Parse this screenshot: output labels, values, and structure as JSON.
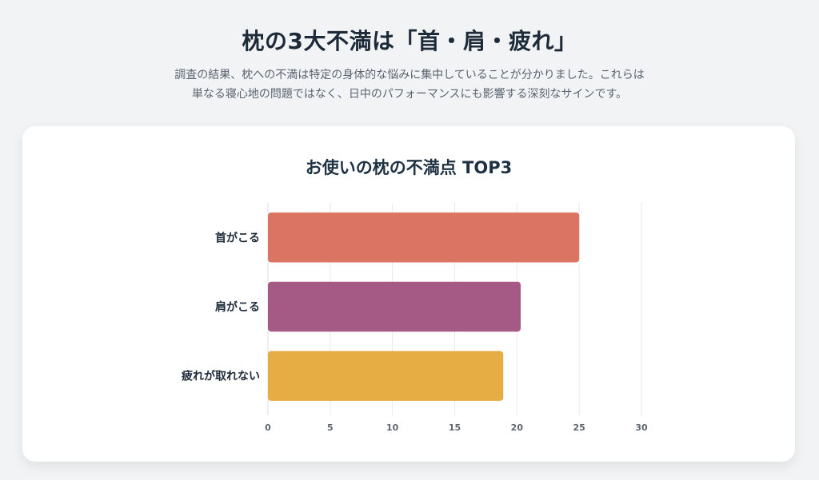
{
  "header": {
    "title": "枕の3大不満は「首・肩・疲れ」",
    "description_lines": [
      "調査の結果、枕への不満は特定の身体的な悩みに集中していることが分かりました。これらは",
      "単なる寝心地の問題ではなく、日中のパフォーマンスにも影響する深刻なサインです。"
    ]
  },
  "chart_data": {
    "type": "bar",
    "orientation": "horizontal",
    "title": "お使いの枕の不満点 TOP3",
    "categories": [
      "首がこる",
      "肩がこる",
      "疲れが取れない"
    ],
    "values": [
      25,
      20.3,
      18.9
    ],
    "colors": [
      "#db7462",
      "#a55a86",
      "#e5ad44"
    ],
    "xlim": [
      0,
      30
    ],
    "xticks": [
      0,
      5,
      10,
      15,
      20,
      25,
      30
    ],
    "xlabel": "",
    "ylabel": "",
    "grid": true,
    "legend": "none"
  }
}
